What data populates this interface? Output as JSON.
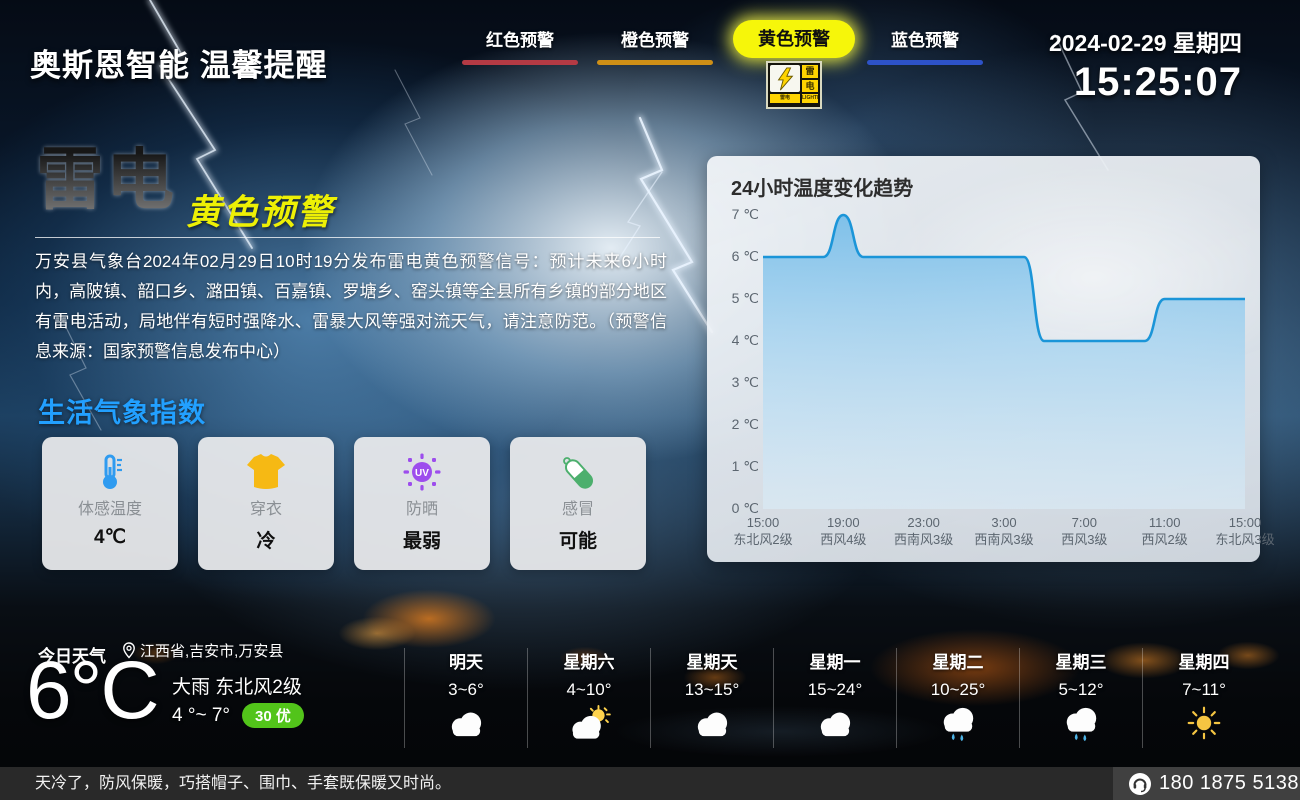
{
  "header": {
    "title": "奥斯恩智能 温馨提醒",
    "tabs": [
      {
        "label": "红色预警",
        "color": "#b43a44",
        "active": false
      },
      {
        "label": "橙色预警",
        "color": "#cf8f16",
        "active": false
      },
      {
        "label": "黄色预警",
        "color": "#f6f60a",
        "active": true
      },
      {
        "label": "蓝色预警",
        "color": "#2d52c8",
        "active": false
      }
    ],
    "badge": {
      "char1": "雷",
      "char2": "电",
      "foot_cn": "雷电",
      "foot_en": "LIGHTNING"
    },
    "date": "2024-02-29 星期四",
    "time": "15:25:07"
  },
  "warning": {
    "type": "雷电",
    "level": "黄色预警",
    "text": "万安县气象台2024年02月29日10时19分发布雷电黄色预警信号：预计未来6小时内，高陂镇、韶口乡、潞田镇、百嘉镇、罗塘乡、窑头镇等全县所有乡镇的部分地区有雷电活动，局地伴有短时强降水、雷暴大风等强对流天气，请注意防范。（预警信息来源：国家预警信息发布中心）"
  },
  "life_index": {
    "title": "生活气象指数",
    "items": [
      {
        "icon": "thermometer-icon",
        "label": "体感温度",
        "value": "4℃",
        "color": "#2f9bf0"
      },
      {
        "icon": "tshirt-icon",
        "label": "穿衣",
        "value": "冷",
        "color": "#f6b914"
      },
      {
        "icon": "uv-icon",
        "label": "防晒",
        "value": "最弱",
        "color": "#9d4ded"
      },
      {
        "icon": "capsule-icon",
        "label": "感冒",
        "value": "可能",
        "color": "#4caf6d"
      }
    ]
  },
  "chart_data": {
    "type": "area",
    "title": "24小时温度变化趋势",
    "ylabel": "℃",
    "ylim": [
      0,
      7
    ],
    "y_step": 1,
    "grid": false,
    "line_color": "#1b95d8",
    "x_ticks": [
      {
        "time": "15:00",
        "wind": "东北风2级"
      },
      {
        "time": "19:00",
        "wind": "西风4级"
      },
      {
        "time": "23:00",
        "wind": "西南风3级"
      },
      {
        "time": "3:00",
        "wind": "西南风3级"
      },
      {
        "time": "7:00",
        "wind": "西风3级"
      },
      {
        "time": "11:00",
        "wind": "西风2级"
      },
      {
        "time": "15:00",
        "wind": "东北风3级"
      }
    ],
    "series": [
      {
        "name": "温度",
        "unit": "℃",
        "hours": [
          "15:00",
          "16:00",
          "17:00",
          "18:00",
          "19:00",
          "20:00",
          "21:00",
          "22:00",
          "23:00",
          "0:00",
          "1:00",
          "2:00",
          "3:00",
          "4:00",
          "5:00",
          "6:00",
          "7:00",
          "8:00",
          "9:00",
          "10:00",
          "11:00",
          "12:00",
          "13:00",
          "14:00",
          "15:00"
        ],
        "values": [
          6,
          6,
          6,
          6,
          7,
          6,
          6,
          6,
          6,
          6,
          6,
          6,
          6,
          6,
          4,
          4,
          4,
          4,
          4,
          4,
          5,
          5,
          5,
          5,
          5
        ]
      }
    ]
  },
  "today": {
    "label": "今日天气",
    "location": "江西省,吉安市,万安县",
    "temp": "6°C",
    "condition": "大雨 东北风2级",
    "range": "4 °~ 7°",
    "aqi": "30 优",
    "aqi_color": "#52c41a"
  },
  "forecast": [
    {
      "day": "明天",
      "range": "3~6°",
      "icon": "cloudy-icon"
    },
    {
      "day": "星期六",
      "range": "4~10°",
      "icon": "partly-sunny-icon"
    },
    {
      "day": "星期天",
      "range": "13~15°",
      "icon": "cloudy-icon"
    },
    {
      "day": "星期一",
      "range": "15~24°",
      "icon": "cloudy-icon"
    },
    {
      "day": "星期二",
      "range": "10~25°",
      "icon": "rain-icon"
    },
    {
      "day": "星期三",
      "range": "5~12°",
      "icon": "rain-icon"
    },
    {
      "day": "星期四",
      "range": "7~11°",
      "icon": "sunny-icon"
    }
  ],
  "footer": {
    "tip": "天冷了，防风保暖，巧搭帽子、围巾、手套既保暖又时尚。",
    "phone": "180 1875 5138"
  }
}
